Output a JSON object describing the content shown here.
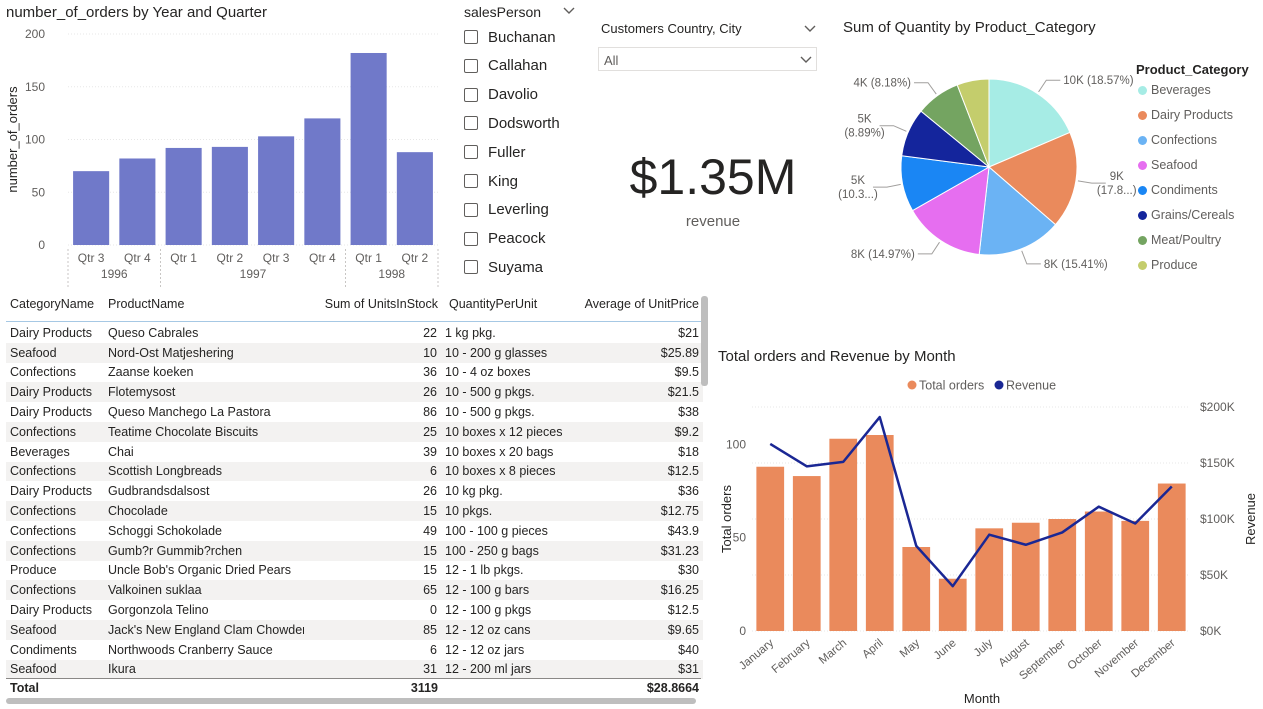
{
  "bar_chart": {
    "title": "number_of_orders by Year and Quarter",
    "ylabel": "number_of_orders"
  },
  "slicer_person": {
    "title": "salesPerson",
    "items": [
      "Buchanan",
      "Callahan",
      "Davolio",
      "Dodsworth",
      "Fuller",
      "King",
      "Leverling",
      "Peacock",
      "Suyama"
    ]
  },
  "slicer_country": {
    "title": "Customers Country, City",
    "value": "All"
  },
  "card": {
    "value": "$1.35M",
    "label": "revenue"
  },
  "pie": {
    "title": "Sum of Quantity by Product_Category",
    "legend_title": "Product_Category"
  },
  "table": {
    "headers": [
      "CategoryName",
      "ProductName",
      "Sum of UnitsInStock",
      "QuantityPerUnit",
      "Average of UnitPrice"
    ],
    "rows": [
      [
        "Dairy Products",
        "Queso Cabrales",
        "22",
        "1 kg pkg.",
        "$21"
      ],
      [
        "Seafood",
        "Nord-Ost Matjeshering",
        "10",
        "10 - 200 g glasses",
        "$25.89"
      ],
      [
        "Confections",
        "Zaanse koeken",
        "36",
        "10 - 4 oz boxes",
        "$9.5"
      ],
      [
        "Dairy Products",
        "Flotemysost",
        "26",
        "10 - 500 g pkgs.",
        "$21.5"
      ],
      [
        "Dairy Products",
        "Queso Manchego La Pastora",
        "86",
        "10 - 500 g pkgs.",
        "$38"
      ],
      [
        "Confections",
        "Teatime Chocolate Biscuits",
        "25",
        "10 boxes x 12 pieces",
        "$9.2"
      ],
      [
        "Beverages",
        "Chai",
        "39",
        "10 boxes x 20 bags",
        "$18"
      ],
      [
        "Confections",
        "Scottish Longbreads",
        "6",
        "10 boxes x 8 pieces",
        "$12.5"
      ],
      [
        "Dairy Products",
        "Gudbrandsdalsost",
        "26",
        "10 kg pkg.",
        "$36"
      ],
      [
        "Confections",
        "Chocolade",
        "15",
        "10 pkgs.",
        "$12.75"
      ],
      [
        "Confections",
        "Schoggi Schokolade",
        "49",
        "100 - 100 g pieces",
        "$43.9"
      ],
      [
        "Confections",
        "Gumb?r Gummib?rchen",
        "15",
        "100 - 250 g bags",
        "$31.23"
      ],
      [
        "Produce",
        "Uncle Bob's Organic Dried Pears",
        "15",
        "12 - 1 lb pkgs.",
        "$30"
      ],
      [
        "Confections",
        "Valkoinen suklaa",
        "65",
        "12 - 100 g bars",
        "$16.25"
      ],
      [
        "Dairy Products",
        "Gorgonzola Telino",
        "0",
        "12 - 100 g pkgs",
        "$12.5"
      ],
      [
        "Seafood",
        "Jack's New England Clam Chowder",
        "85",
        "12 - 12 oz cans",
        "$9.65"
      ],
      [
        "Condiments",
        "Northwoods Cranberry Sauce",
        "6",
        "12 - 12 oz jars",
        "$40"
      ],
      [
        "Seafood",
        "Ikura",
        "31",
        "12 - 200 ml jars",
        "$31"
      ]
    ],
    "total": {
      "label": "Total",
      "units": "3119",
      "price": "$28.8664"
    }
  },
  "combo": {
    "title": "Total orders and Revenue by Month",
    "xlabel": "Month",
    "ylabel_left": "Total orders",
    "ylabel_right": "Revenue"
  },
  "chart_data": [
    {
      "type": "bar",
      "title": "number_of_orders by Year and Quarter",
      "ylabel": "number_of_orders",
      "categories": [
        "Qtr 3",
        "Qtr 4",
        "Qtr 1",
        "Qtr 2",
        "Qtr 3",
        "Qtr 4",
        "Qtr 1",
        "Qtr 2"
      ],
      "year_groups": [
        {
          "label": "1996",
          "count": 2
        },
        {
          "label": "1997",
          "count": 4
        },
        {
          "label": "1998",
          "count": 2
        }
      ],
      "values": [
        70,
        82,
        92,
        93,
        103,
        120,
        182,
        88
      ],
      "ylim": [
        0,
        200
      ],
      "yticks": [
        0,
        50,
        100,
        150,
        200
      ],
      "color": "#7079c9"
    },
    {
      "type": "pie",
      "title": "Sum of Quantity by Product_Category",
      "legend_title": "Product_Category",
      "labels": [
        "Beverages",
        "Dairy Products",
        "Confections",
        "Seafood",
        "Condiments",
        "Grains/Cereals",
        "Meat/Poultry",
        "Produce"
      ],
      "values": [
        18.57,
        17.8,
        15.41,
        14.97,
        10.3,
        8.89,
        8.18,
        5.88
      ],
      "data_labels": [
        "10K (18.57%)",
        "9K (17.8...)",
        "8K (15.41%)",
        "8K (14.97%)",
        "5K (10.3...)",
        "5K (8.89%)",
        "4K (8.18%)",
        ""
      ],
      "colors": [
        "#a6ece5",
        "#ea8a5c",
        "#6bb3f4",
        "#e66ef0",
        "#1a86f4",
        "#14259c",
        "#74a461",
        "#c4cd6c"
      ],
      "legend_position": "right"
    },
    {
      "type": "bar",
      "title": "Total orders and Revenue by Month",
      "xlabel": "Month",
      "categories": [
        "January",
        "February",
        "March",
        "April",
        "May",
        "June",
        "July",
        "August",
        "September",
        "October",
        "November",
        "December"
      ],
      "series": [
        {
          "name": "Total orders",
          "type": "bar",
          "axis": "left",
          "color": "#ea8a5c",
          "values": [
            88,
            83,
            103,
            105,
            45,
            28,
            55,
            58,
            60,
            64,
            59,
            79
          ]
        },
        {
          "name": "Revenue",
          "type": "line",
          "axis": "right",
          "color": "#1a2794",
          "values": [
            167000,
            147000,
            151000,
            191000,
            76000,
            40000,
            86000,
            77000,
            88000,
            111000,
            96000,
            129000
          ]
        }
      ],
      "ylabel_left": "Total orders",
      "ylim_left": [
        0,
        120
      ],
      "yticks_left": [
        0,
        50,
        100
      ],
      "ylabel_right": "Revenue",
      "ylim_right": [
        0,
        200000
      ],
      "yticks_right": [
        "$0K",
        "$50K",
        "$100K",
        "$150K",
        "$200K"
      ],
      "legend_position": "top"
    }
  ]
}
